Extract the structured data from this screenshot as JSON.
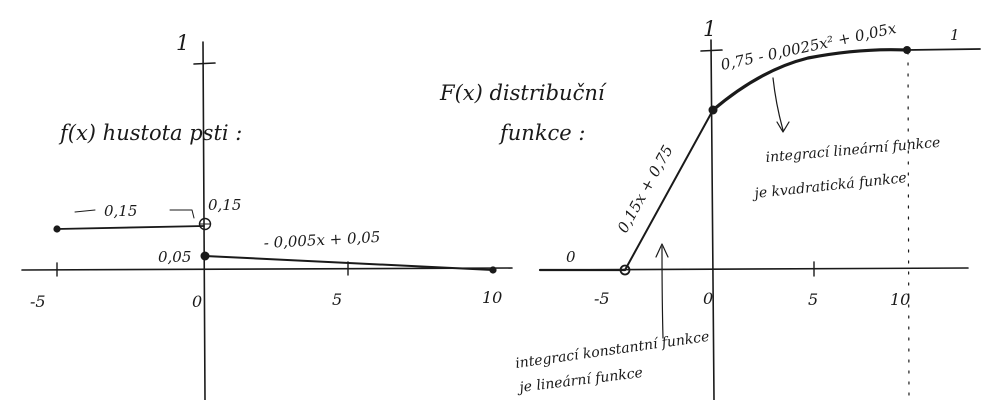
{
  "left_plot": {
    "title": "f(x) hustota psti :",
    "axis_top_label": "1",
    "segment_const_label": "0,15",
    "value_label_015": "0,15",
    "value_label_005": "0,05",
    "segment_linear_label": "- 0,005x + 0,05",
    "x_ticks": [
      "-5",
      "0",
      "5",
      "10"
    ]
  },
  "right_plot": {
    "title_line1": "F(x) distribuční",
    "title_line2": "funkce :",
    "axis_top_label": "1",
    "zero_label": "0",
    "one_label": "1",
    "linear_piece_label": "0,15x + 0,75",
    "quadratic_piece_label": "0,75 - 0,0025x² + 0,05x",
    "note_top_line1": "integrací lineární funkce",
    "note_top_line2": "je kvadratická funkce",
    "note_bottom_line1": "integrací konstantní funkce",
    "note_bottom_line2": "je lineární funkce",
    "x_ticks": [
      "-5",
      "0",
      "5",
      "10"
    ]
  }
}
